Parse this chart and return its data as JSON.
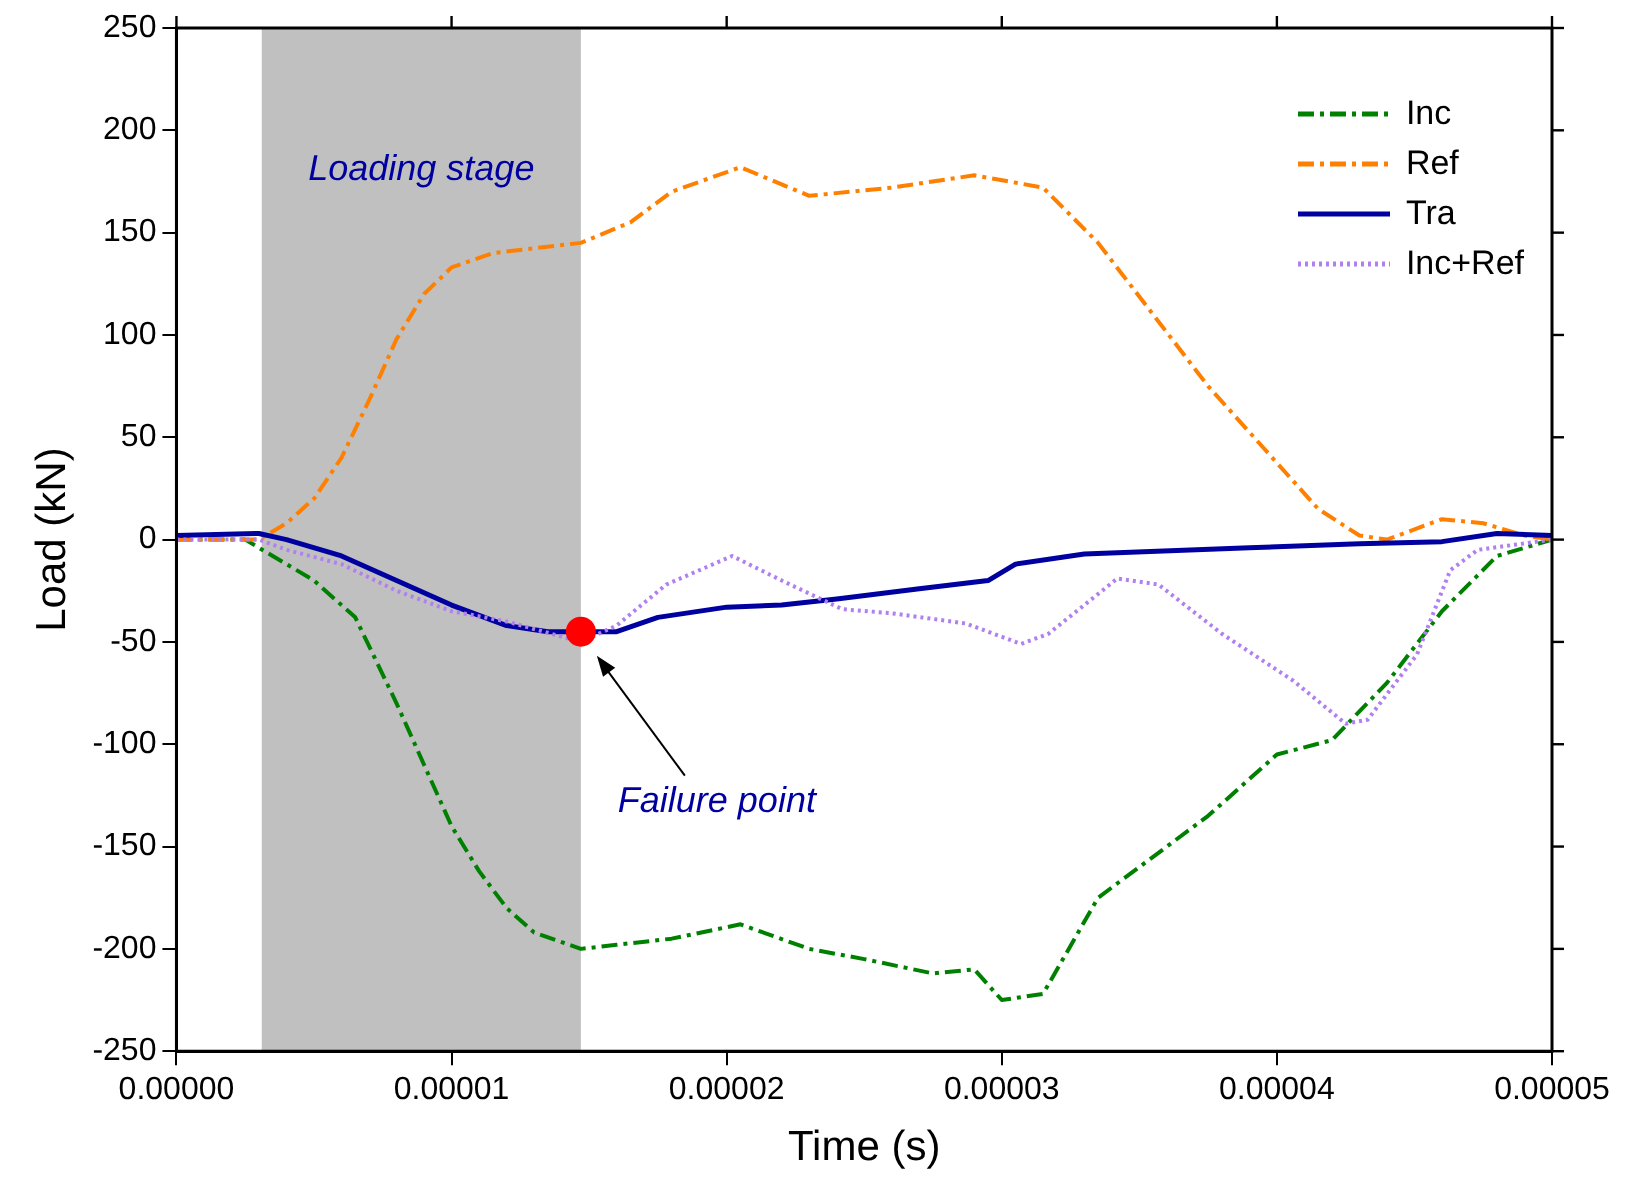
{
  "chart_data": {
    "type": "line",
    "xlabel": "Time (s)",
    "ylabel": "Load (kN)",
    "xlim": [
      0,
      5e-05
    ],
    "xticks": [
      {
        "value": 0,
        "label": "0.00000"
      },
      {
        "value": 1e-05,
        "label": "0.00001"
      },
      {
        "value": 2e-05,
        "label": "0.00002"
      },
      {
        "value": 3e-05,
        "label": "0.00003"
      },
      {
        "value": 4e-05,
        "label": "0.00004"
      },
      {
        "value": 5e-05,
        "label": "0.00005"
      }
    ],
    "ylim": [
      -250,
      250
    ],
    "yticks": [
      -250,
      -200,
      -150,
      -100,
      -50,
      0,
      50,
      100,
      150,
      200,
      250
    ],
    "grid": false,
    "legend": "top right",
    "marker": "none",
    "series": [
      {
        "name": "Inc",
        "color": "#008000",
        "line_style": "dashed",
        "x": [
          0,
          2.5e-06,
          3.5e-06,
          5e-06,
          6.5e-06,
          8e-06,
          9e-06,
          1e-05,
          1.1e-05,
          1.2e-05,
          1.3e-05,
          1.47e-05,
          1.6e-05,
          1.8e-05,
          2.05e-05,
          2.3e-05,
          2.5e-05,
          2.75e-05,
          2.9e-05,
          3e-05,
          3.15e-05,
          3.35e-05,
          3.55e-05,
          3.75e-05,
          4e-05,
          4.2e-05,
          4.4e-05,
          4.6e-05,
          4.8e-05,
          5e-05
        ],
        "values": [
          0,
          0,
          -8,
          -20,
          -38,
          -80,
          -110,
          -140,
          -162,
          -180,
          -192,
          -200,
          -198,
          -195,
          -188,
          -200,
          -205,
          -212,
          -210,
          -225,
          -222,
          -175,
          -155,
          -135,
          -105,
          -98,
          -70,
          -35,
          -8,
          0
        ]
      },
      {
        "name": "Ref",
        "color": "#ff8000",
        "line_style": "dashed",
        "x": [
          0,
          3e-06,
          4e-06,
          5e-06,
          6e-06,
          7e-06,
          8e-06,
          9e-06,
          1e-05,
          1.15e-05,
          1.47e-05,
          1.65e-05,
          1.8e-05,
          2.05e-05,
          2.3e-05,
          2.6e-05,
          2.9e-05,
          3.15e-05,
          3.35e-05,
          3.55e-05,
          3.75e-05,
          3.95e-05,
          4.15e-05,
          4.3e-05,
          4.4e-05,
          4.6e-05,
          4.75e-05,
          4.9e-05,
          5e-05
        ],
        "values": [
          0,
          0,
          8,
          20,
          40,
          68,
          98,
          120,
          133,
          140,
          145,
          155,
          170,
          182,
          168,
          172,
          178,
          172,
          145,
          110,
          75,
          45,
          15,
          2,
          0,
          10,
          8,
          2,
          0
        ]
      },
      {
        "name": "Tra",
        "color": "#0000a0",
        "line_style": "solid",
        "x": [
          0,
          3e-06,
          4e-06,
          6e-06,
          8e-06,
          1e-05,
          1.2e-05,
          1.35e-05,
          1.47e-05,
          1.6e-05,
          1.75e-05,
          2e-05,
          2.2e-05,
          2.4e-05,
          2.7e-05,
          2.95e-05,
          3.05e-05,
          3.3e-05,
          3.9e-05,
          4.3e-05,
          4.6e-05,
          4.8e-05,
          5e-05
        ],
        "values": [
          2,
          3,
          0,
          -8,
          -20,
          -32,
          -42,
          -45,
          -45,
          -45,
          -38,
          -33,
          -32,
          -29,
          -24,
          -20,
          -12,
          -7,
          -4,
          -2,
          -1,
          3,
          2
        ]
      },
      {
        "name": "Inc+Ref",
        "color": "#b080f0",
        "line_style": "dotted",
        "x": [
          0,
          3e-06,
          4e-06,
          6e-06,
          8e-06,
          1e-05,
          1.2e-05,
          1.47e-05,
          1.6e-05,
          1.78e-05,
          2.02e-05,
          2.2e-05,
          2.42e-05,
          2.6e-05,
          2.87e-05,
          3.07e-05,
          3.17e-05,
          3.42e-05,
          3.57e-05,
          3.8e-05,
          4.06e-05,
          4.25e-05,
          4.33e-05,
          4.51e-05,
          4.63e-05,
          4.73e-05,
          5e-05
        ],
        "values": [
          0,
          0,
          -5,
          -12,
          -25,
          -35,
          -40,
          -50,
          -42,
          -22,
          -8,
          -20,
          -34,
          -36,
          -41,
          -51,
          -46,
          -19,
          -22,
          -46,
          -69,
          -90,
          -88,
          -56,
          -15,
          -5,
          0
        ]
      },
      {
        "type": "scatter",
        "color": "#ff0000",
        "marker": "circle",
        "x": [
          1.47e-05
        ],
        "values": [
          -45
        ]
      }
    ],
    "bands": [
      {
        "axis": "x",
        "from": 3.1e-06,
        "to": 1.47e-05,
        "label": "Loading stage",
        "color": "#c0c0c0"
      }
    ],
    "annotations": [
      "Failure point"
    ]
  }
}
